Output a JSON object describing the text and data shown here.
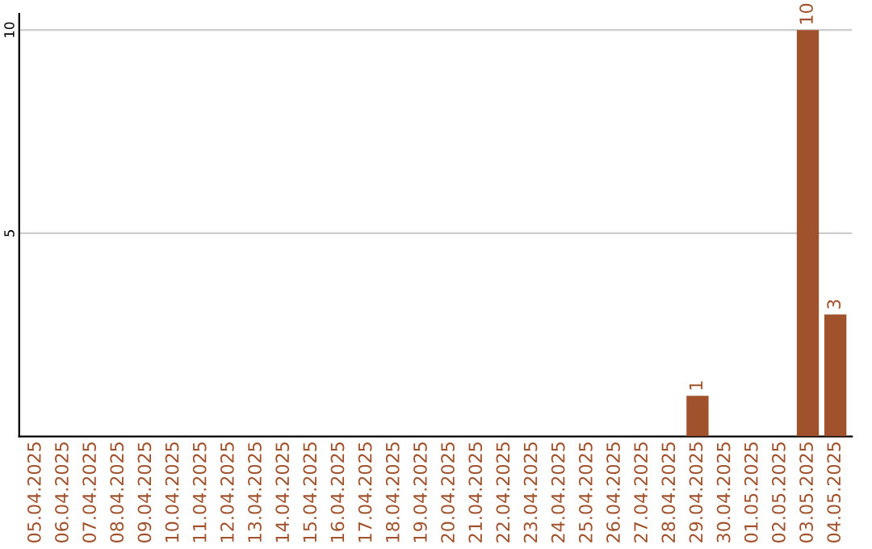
{
  "chart_data": {
    "type": "bar",
    "categories": [
      "05.04.2025",
      "06.04.2025",
      "07.04.2025",
      "08.04.2025",
      "09.04.2025",
      "10.04.2025",
      "11.04.2025",
      "12.04.2025",
      "13.04.2025",
      "14.04.2025",
      "15.04.2025",
      "16.04.2025",
      "17.04.2025",
      "18.04.2025",
      "19.04.2025",
      "20.04.2025",
      "21.04.2025",
      "22.04.2025",
      "23.04.2025",
      "24.04.2025",
      "25.04.2025",
      "26.04.2025",
      "27.04.2025",
      "28.04.2025",
      "29.04.2025",
      "30.04.2025",
      "01.05.2025",
      "02.05.2025",
      "03.05.2025",
      "04.05.2025"
    ],
    "values": [
      0,
      0,
      0,
      0,
      0,
      0,
      0,
      0,
      0,
      0,
      0,
      0,
      0,
      0,
      0,
      0,
      0,
      0,
      0,
      0,
      0,
      0,
      0,
      0,
      1,
      0,
      0,
      0,
      10,
      3
    ],
    "value_labels": [
      null,
      null,
      null,
      null,
      null,
      null,
      null,
      null,
      null,
      null,
      null,
      null,
      null,
      null,
      null,
      null,
      null,
      null,
      null,
      null,
      null,
      null,
      null,
      null,
      "1",
      null,
      null,
      null,
      "10",
      "3"
    ],
    "color": "#a0522d",
    "ylim": [
      0,
      10.4
    ],
    "yticks": [
      5,
      10
    ],
    "grid": "y"
  }
}
